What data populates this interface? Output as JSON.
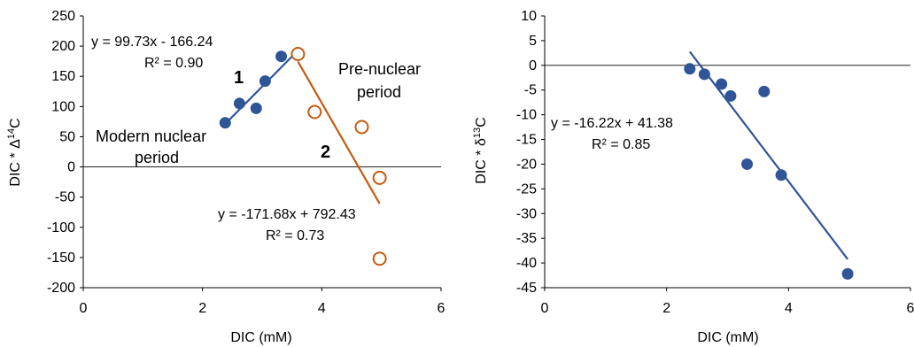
{
  "chart_data": [
    {
      "type": "scatter",
      "title": "",
      "xlabel": "DIC (mM)",
      "ylabel_prefix": "DIC * ",
      "ylabel_symbol": "Δ",
      "ylabel_sup": "14",
      "ylabel_suffix": "C",
      "xlim": [
        0,
        6
      ],
      "ylim": [
        -200,
        250
      ],
      "xticks": [
        "0",
        "2",
        "4",
        "6"
      ],
      "yticks": [
        "250",
        "200",
        "150",
        "100",
        "50",
        "0",
        "-50",
        "-100",
        "-150",
        "-200"
      ],
      "grid": false,
      "zero_line": true,
      "series": [
        {
          "marker": "filled-circle",
          "color": "#2f5597",
          "x": [
            2.38,
            2.62,
            2.9,
            3.05,
            3.32,
            3.6
          ],
          "y": [
            73,
            105,
            97,
            142,
            183,
            187
          ]
        },
        {
          "marker": "open-circle",
          "color": "#c55a11",
          "x": [
            3.6,
            3.88,
            4.67,
            4.97,
            4.97
          ],
          "y": [
            187,
            91,
            66,
            -18,
            -152
          ]
        }
      ],
      "trendlines": [
        {
          "color": "#2f5597",
          "slope": 99.73,
          "intercept": -166.24,
          "x_range": [
            2.38,
            3.6
          ],
          "equation": "y = 99.73x - 166.24",
          "r2": "R² = 0.90"
        },
        {
          "color": "#c55a11",
          "slope": -171.68,
          "intercept": 792.43,
          "x_range": [
            3.6,
            4.97
          ],
          "equation": "y = -171.68x + 792.43",
          "r2": "R² = 0.73"
        }
      ],
      "annotations": {
        "label_1": "1",
        "label_2": "2",
        "modern_line1": "Modern nuclear",
        "modern_line2": "period",
        "pre_line1": "Pre-nuclear",
        "pre_line2": "period"
      }
    },
    {
      "type": "scatter",
      "title": "",
      "xlabel": "DIC (mM)",
      "ylabel_prefix": "DIC * ",
      "ylabel_symbol": "δ",
      "ylabel_sup": "13",
      "ylabel_suffix": "C",
      "xlim": [
        0,
        6
      ],
      "ylim": [
        -45,
        10
      ],
      "xticks": [
        "0",
        "2",
        "4",
        "6"
      ],
      "yticks": [
        "10",
        "5",
        "0",
        "-5",
        "-10",
        "-15",
        "-20",
        "-25",
        "-30",
        "-35",
        "-40",
        "-45"
      ],
      "grid": false,
      "zero_line": true,
      "series": [
        {
          "marker": "filled-circle",
          "color": "#2f5597",
          "x": [
            2.38,
            2.62,
            2.9,
            3.05,
            3.32,
            3.6,
            3.88,
            4.97
          ],
          "y": [
            -0.7,
            -1.8,
            -3.8,
            -6.2,
            -20.0,
            -5.3,
            -22.2,
            -42.2
          ]
        }
      ],
      "trendlines": [
        {
          "color": "#2f5597",
          "slope": -16.22,
          "intercept": 41.38,
          "x_range": [
            2.38,
            4.97
          ],
          "equation": "y = -16.22x + 41.38",
          "r2": "R² = 0.85"
        }
      ]
    }
  ]
}
